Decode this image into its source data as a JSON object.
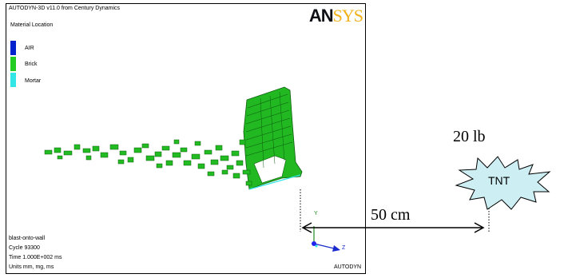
{
  "window": {
    "title": "AUTODYN-3D v11.0 from Century Dynamics",
    "brand_part1": "AN",
    "brand_part2": "SYS",
    "legend": {
      "title": "Material Location",
      "items": [
        {
          "label": "AIR",
          "color": "#0022cc"
        },
        {
          "label": "Brick",
          "color": "#22cc22"
        },
        {
          "label": "Mortar",
          "color": "#33e6e6"
        }
      ]
    },
    "info": {
      "model_name": "blast-onto-wall",
      "cycle": "Cycle 93300",
      "time": "Time 1.000E+002 ms",
      "units": "Units mm, mg, ms"
    },
    "axes": {
      "y": "Y",
      "z": "Z"
    },
    "footer_brand": "AUTODYN"
  },
  "annotation": {
    "charge_weight": "20 lb",
    "charge_label": "TNT",
    "distance": "50  cm",
    "burst_color": "#cdeef2"
  }
}
